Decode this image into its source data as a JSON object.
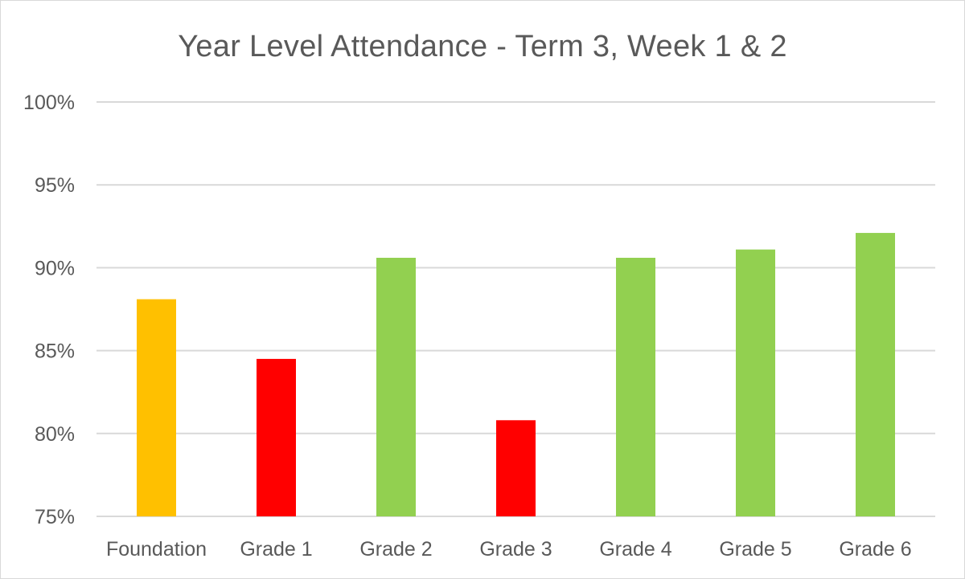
{
  "chart_data": {
    "type": "bar",
    "title": "Year Level Attendance - Term 3, Week 1 & 2",
    "xlabel": "",
    "ylabel": "",
    "categories": [
      "Foundation",
      "Grade 1",
      "Grade 2",
      "Grade 3",
      "Grade 4",
      "Grade 5",
      "Grade 6"
    ],
    "values": [
      88.1,
      84.5,
      90.6,
      80.8,
      90.6,
      91.1,
      92.1
    ],
    "bar_colors": [
      "#FFC000",
      "#FF0000",
      "#92D050",
      "#FF0000",
      "#92D050",
      "#92D050",
      "#92D050"
    ],
    "ylim": [
      75,
      100
    ],
    "yticks": [
      75,
      80,
      85,
      90,
      95,
      100
    ],
    "ytick_labels": [
      "75%",
      "80%",
      "85%",
      "90%",
      "95%",
      "100%"
    ],
    "grid": true,
    "legend": "none"
  }
}
